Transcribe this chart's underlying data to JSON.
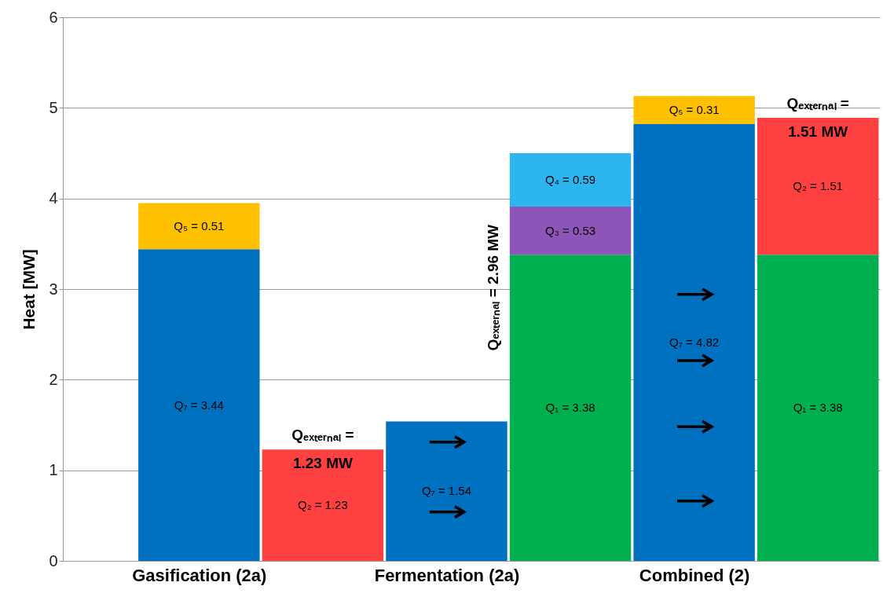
{
  "chart_data": {
    "type": "bar",
    "stacked": true,
    "ylabel": "Heat [MW]",
    "categories": [
      "Gasification (2a)",
      null,
      "Fermentation (2a)",
      null,
      "Combined (2)",
      null
    ],
    "series": [
      {
        "color": "#0070c0",
        "values": [
          3.44,
          null,
          1.54,
          null,
          4.82,
          null
        ],
        "value_labels": [
          "Q₇ = 3.44",
          null,
          "Q₇ = 1.54",
          null,
          "Q₇ = 4.82",
          null
        ]
      },
      {
        "color": "#ffc000",
        "values": [
          0.51,
          null,
          null,
          null,
          0.31,
          null
        ],
        "value_labels": [
          "Q₅ = 0.51",
          null,
          null,
          null,
          "Q₅ = 0.31",
          null
        ]
      },
      {
        "color": "#00b050",
        "values": [
          null,
          null,
          null,
          3.38,
          null,
          3.38
        ],
        "value_labels": [
          null,
          null,
          null,
          "Q₁ = 3.38",
          null,
          "Q₁ = 3.38"
        ]
      },
      {
        "color": "#ff4040",
        "values": [
          null,
          1.23,
          null,
          null,
          null,
          1.51
        ],
        "value_labels": [
          null,
          "Q₂ = 1.23",
          null,
          null,
          null,
          "Q₂ = 1.51"
        ]
      },
      {
        "color": "#8e55b8",
        "values": [
          null,
          null,
          null,
          0.53,
          null,
          null
        ],
        "value_labels": [
          null,
          null,
          null,
          "Q₃ = 0.53",
          null,
          null
        ]
      },
      {
        "color": "#2cb5ee",
        "values": [
          null,
          null,
          null,
          0.59,
          null,
          null
        ],
        "value_labels": [
          null,
          null,
          null,
          "Q₄ = 0.59",
          null,
          null
        ]
      }
    ],
    "annotations": [
      "Qₑₓₜₑᵣₙₐₗ =\n1.23 MW",
      "Qₑₓₜₑᵣₙₐₗ = 2.96 MW",
      "Qₑₓₜₑᵣₙₐₗ =\n1.51 MW"
    ],
    "ylim": [
      0,
      6
    ],
    "yticks": [
      0,
      1,
      2,
      3,
      4,
      5,
      6
    ],
    "grid": "y"
  }
}
